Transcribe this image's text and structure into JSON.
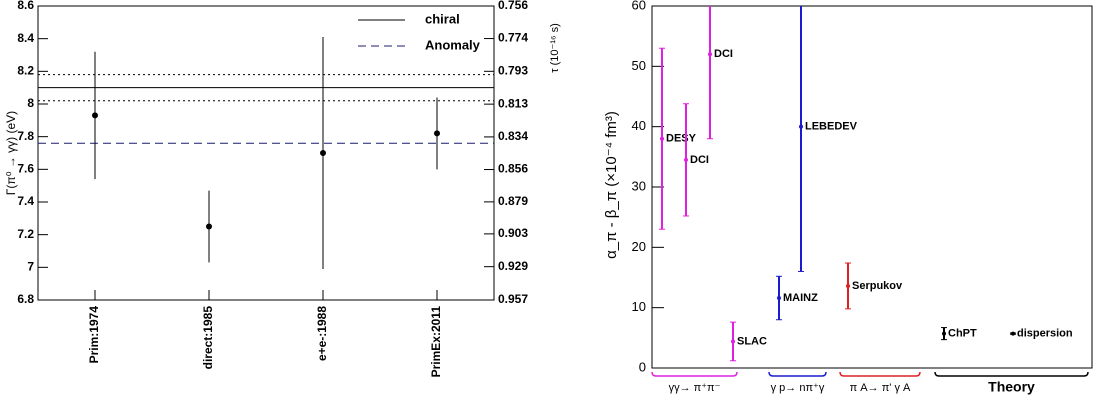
{
  "chart_data": [
    {
      "type": "errorbar",
      "y_label": "Γ(π⁰ → γγ) (eV)",
      "y2_label": "τ (10⁻¹⁶ s)",
      "categories": [
        "Prim:1974",
        "direct:1985",
        "e+e-:1988",
        "PrimEx:2011"
      ],
      "values": [
        7.93,
        7.25,
        7.7,
        7.82
      ],
      "errors": [
        0.39,
        0.22,
        0.71,
        0.22
      ],
      "color": "#000000",
      "ylim": [
        6.8,
        8.6
      ],
      "yticks": [
        6.8,
        7,
        7.2,
        7.4,
        7.6,
        7.8,
        8,
        8.2,
        8.4,
        8.6
      ],
      "y2lim": [
        0.957,
        0.756
      ],
      "y2ticks": [
        0.957,
        0.929,
        0.903,
        0.879,
        0.856,
        0.834,
        0.813,
        0.793,
        0.774,
        0.756
      ],
      "y2_scale": "reciprocal",
      "lines": [
        {
          "name": "chiral",
          "value": 8.1,
          "style": "solid",
          "color": "#000000"
        },
        {
          "name": "Anomaly",
          "value": 7.76,
          "style": "dashed",
          "color": "#1c1c6e"
        }
      ],
      "chiral_band": [
        8.02,
        8.18
      ],
      "legend": "upper right"
    },
    {
      "type": "errorbar_groups",
      "y_label": "α_π - β_π (×10⁻⁴ fm³)",
      "ylim": [
        0,
        60
      ],
      "yticks": [
        0,
        10,
        20,
        30,
        40,
        50,
        60
      ],
      "series": [
        {
          "name": "γγ→ π⁺π⁻",
          "color": "#e020e0",
          "categories": [
            "DESY",
            "DCI",
            "DCI",
            "SLAC"
          ],
          "values": [
            38,
            34.5,
            52,
            4.4
          ],
          "errors": [
            15,
            9.3,
            14,
            3.2
          ]
        },
        {
          "name": "γ p→ nπ⁺γ",
          "color": "#1a1ad0",
          "categories": [
            "MAINZ",
            "LEBEDEV"
          ],
          "values": [
            11.6,
            40
          ],
          "errors": [
            3.6,
            24
          ]
        },
        {
          "name": "π A→ π' γ A",
          "color": "#e02020",
          "categories": [
            "Serpukov"
          ],
          "values": [
            13.6
          ],
          "errors": [
            3.8
          ]
        },
        {
          "name": "Theory",
          "color": "#000000",
          "categories": [
            "ChPT",
            "dispersion"
          ],
          "values": [
            5.7,
            5.7
          ],
          "errors": [
            1,
            0.1
          ]
        }
      ]
    }
  ]
}
